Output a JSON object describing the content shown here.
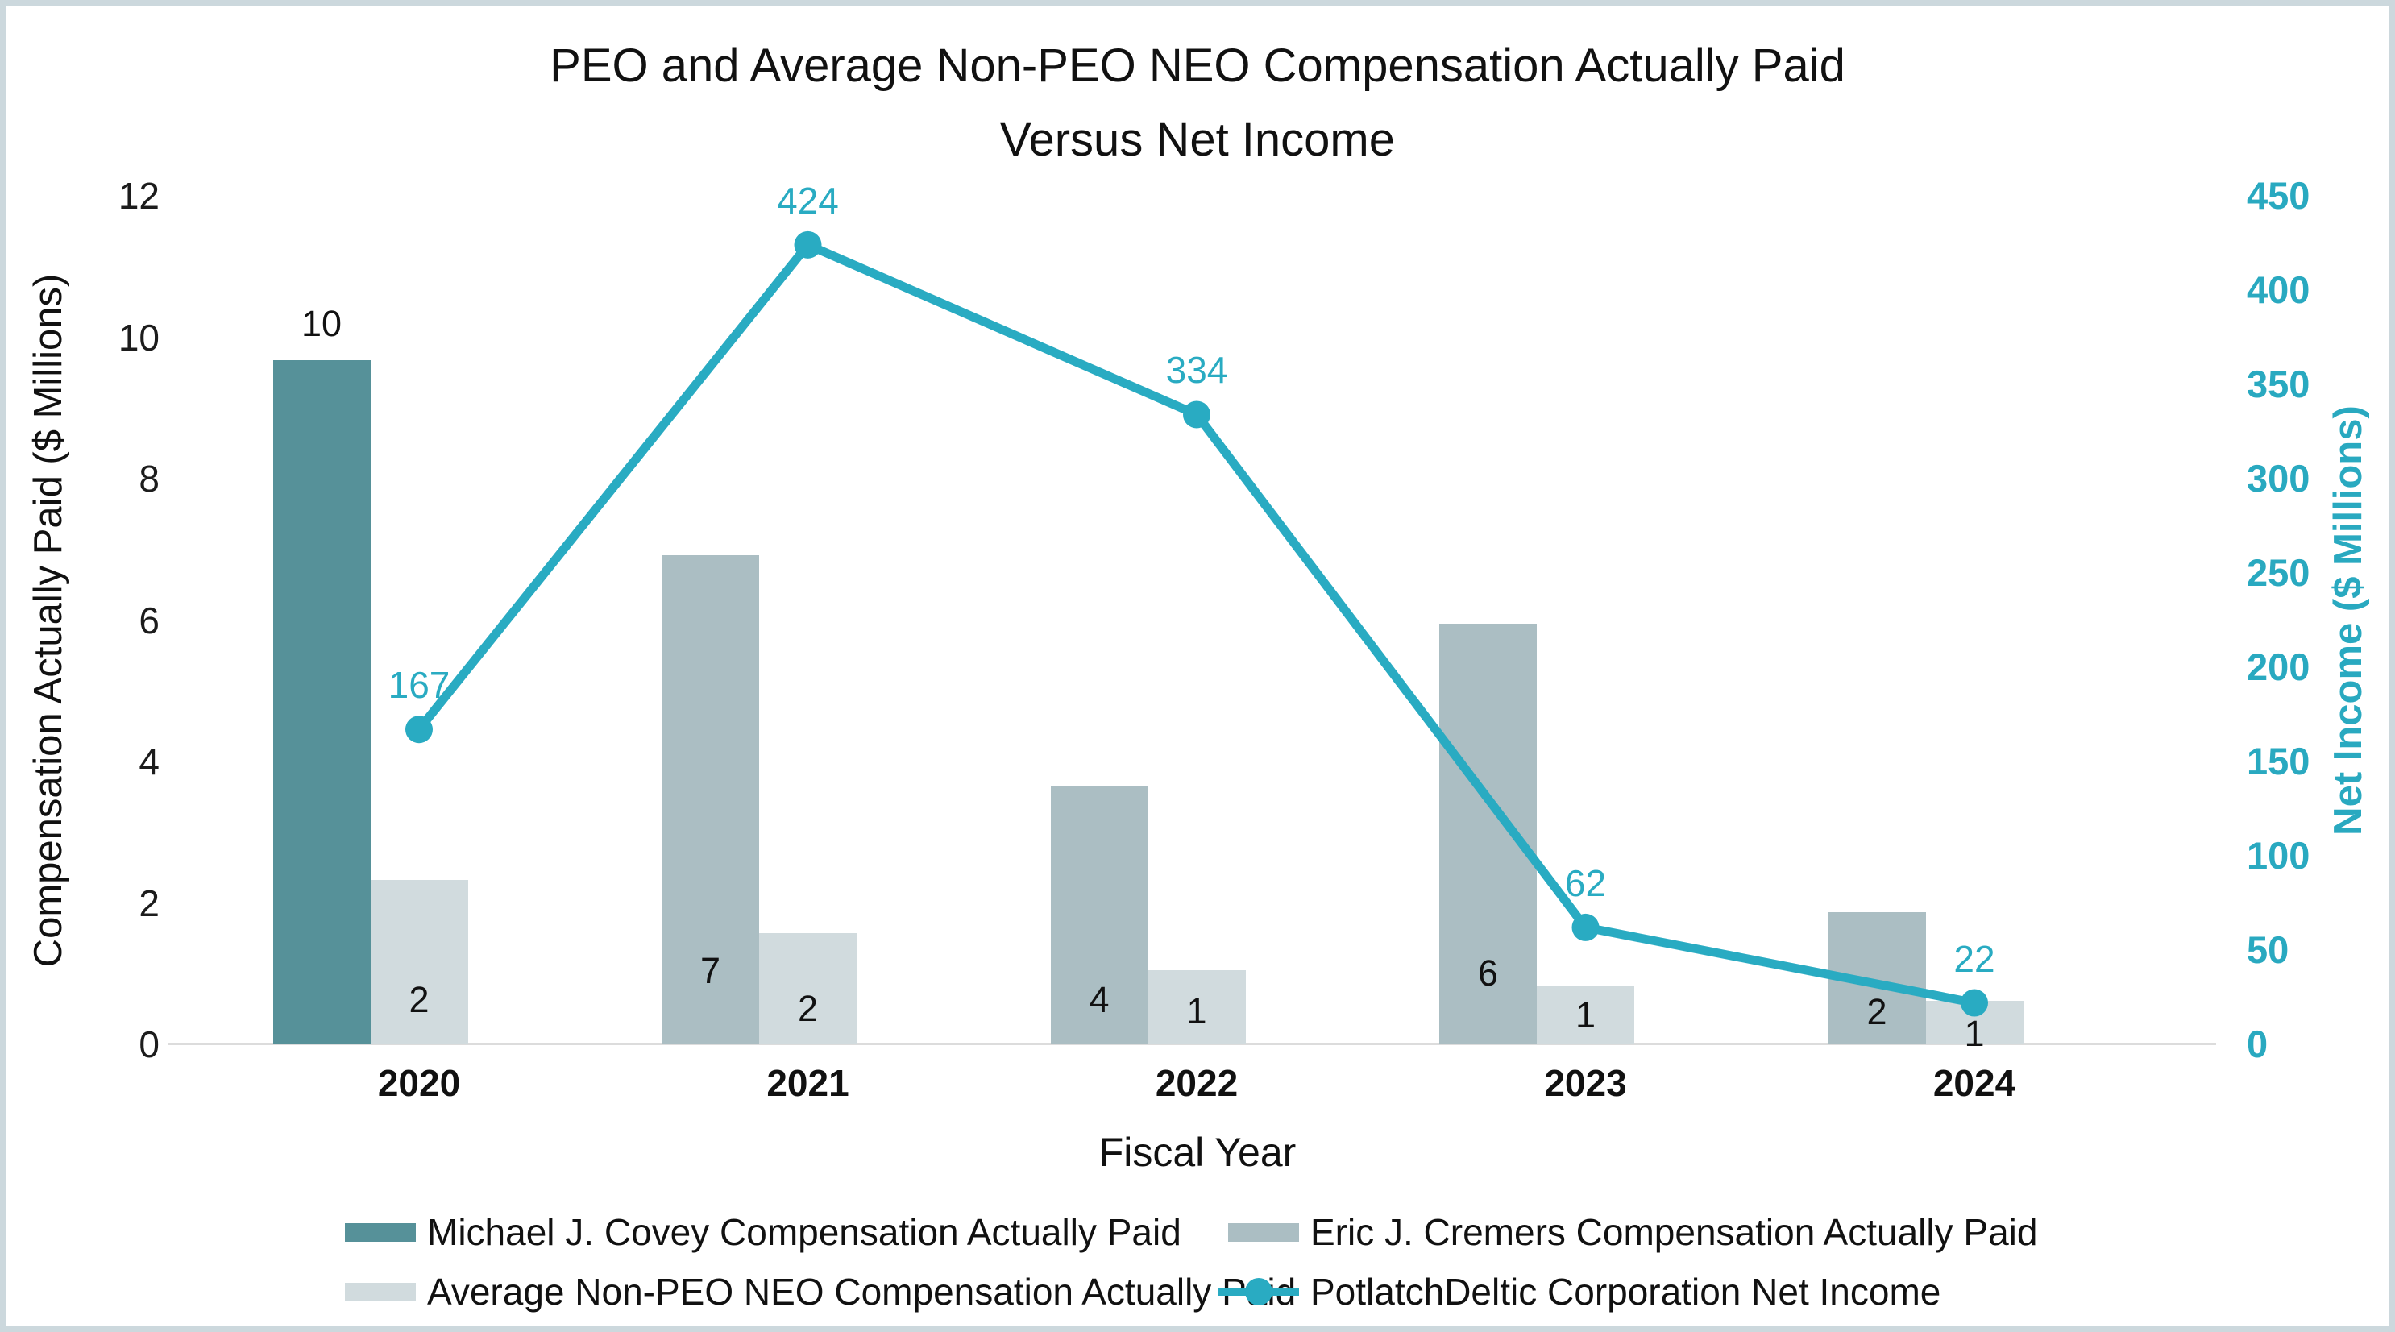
{
  "frame": {
    "border_color": "#ccd8dd",
    "background": "#ffffff"
  },
  "chart_data": {
    "type": "bar+line combo",
    "title_line1": "PEO and Average Non-PEO NEO Compensation Actually Paid",
    "title_line2": "Versus Net Income",
    "xlabel": "Fiscal Year",
    "categories": [
      "2020",
      "2021",
      "2022",
      "2023",
      "2024"
    ],
    "left_axis": {
      "label": "Compensation Actually Paid ($ Millions)",
      "min": 0,
      "max": 12,
      "step": 2,
      "ticks": [
        0,
        2,
        4,
        6,
        8,
        10,
        12
      ],
      "text_color": "#1c1c1c"
    },
    "right_axis": {
      "label": "Net Income ($ Millions)",
      "min": 0,
      "max": 450,
      "step": 50,
      "ticks": [
        0,
        50,
        100,
        150,
        200,
        250,
        300,
        350,
        400,
        450
      ],
      "text_color": "#29a9c0"
    },
    "grid": "off",
    "legend_position": "bottom",
    "series": [
      {
        "name": "Michael J. Covey Compensation Actually Paid",
        "type": "bar",
        "axis": "left",
        "color": "#569199",
        "values": [
          9.68,
          null,
          null,
          null,
          null
        ],
        "labels": [
          "10",
          "",
          "",
          "",
          ""
        ],
        "label_placement": [
          "above",
          "",
          "",
          "",
          ""
        ],
        "label_dy": [
          45,
          0,
          0,
          0,
          0
        ]
      },
      {
        "name": "Eric J. Cremers Compensation Actually Paid",
        "type": "bar",
        "axis": "left",
        "color": "#abbec3",
        "values": [
          null,
          6.92,
          3.65,
          5.95,
          1.87
        ],
        "labels": [
          "",
          "7",
          "4",
          "6",
          "2"
        ],
        "label_placement": [
          "",
          "inside",
          "inside",
          "inside",
          "inside"
        ],
        "label_dy": [
          0,
          91,
          55,
          88,
          40
        ]
      },
      {
        "name": "Average Non-PEO NEO Compensation Actually Paid",
        "type": "bar",
        "axis": "left",
        "color": "#d1dbde",
        "values": [
          2.33,
          1.57,
          1.05,
          0.83,
          0.61
        ],
        "labels": [
          "2",
          "2",
          "1",
          "1",
          "1"
        ],
        "label_placement": [
          "inside",
          "inside",
          "inside",
          "inside",
          "inside"
        ],
        "label_dy": [
          55,
          44,
          41,
          36,
          13
        ]
      },
      {
        "name": "PotlatchDeltic Corporation Net Income",
        "type": "line",
        "axis": "right",
        "color": "#29abc2",
        "values": [
          167,
          424,
          334,
          62,
          22
        ],
        "labels": [
          "167",
          "424",
          "334",
          "62",
          "22"
        ],
        "label_dy": [
          55,
          55,
          55,
          55,
          55
        ]
      }
    ]
  }
}
